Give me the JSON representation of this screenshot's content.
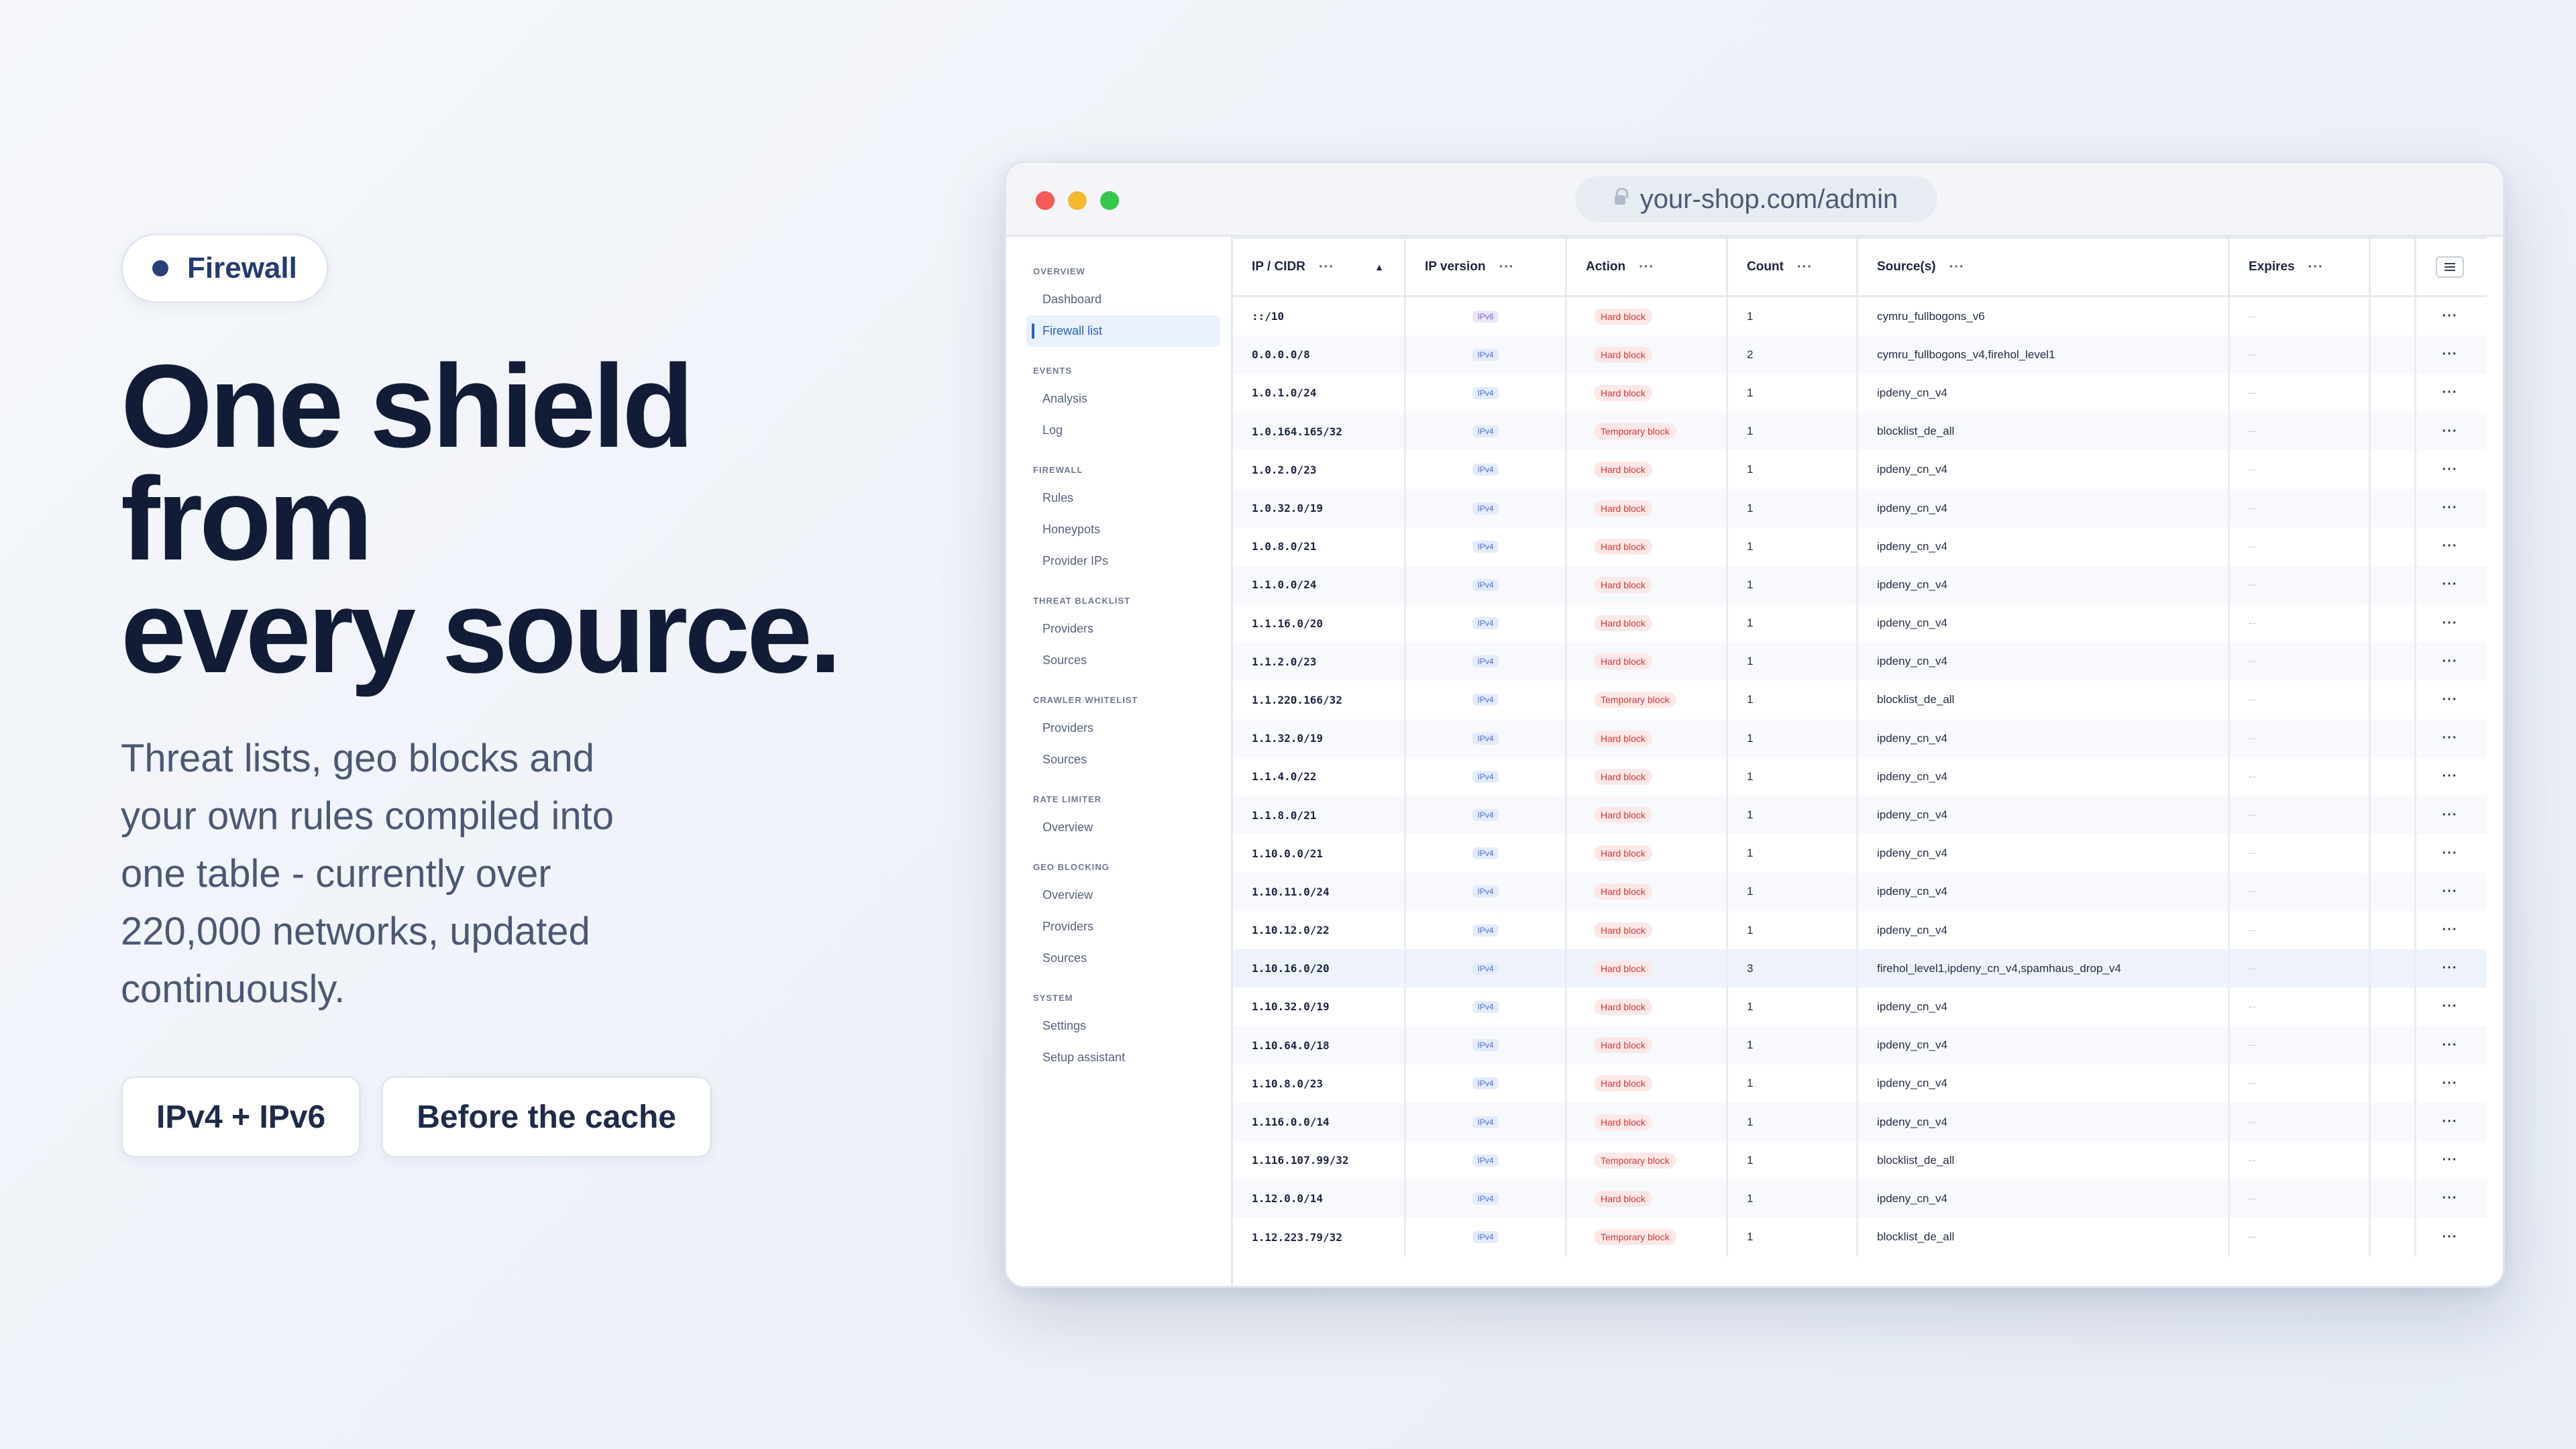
{
  "hero": {
    "pill_label": "Firewall",
    "headline_lines": [
      "One shield",
      "from",
      "every source."
    ],
    "subtext": "Threat lists, geo blocks and your own rules compiled into one table - currently over 220,000 networks, updated continuously.",
    "tags": [
      "IPv4 + IPv6",
      "Before the cache"
    ]
  },
  "browser": {
    "url": "your-shop.com/admin"
  },
  "sidebar": {
    "sections": [
      {
        "heading": "OVERVIEW",
        "items": [
          {
            "label": "Dashboard"
          },
          {
            "label": "Firewall list",
            "active": true
          }
        ]
      },
      {
        "heading": "EVENTS",
        "items": [
          {
            "label": "Analysis"
          },
          {
            "label": "Log"
          }
        ]
      },
      {
        "heading": "FIREWALL",
        "items": [
          {
            "label": "Rules"
          },
          {
            "label": "Honeypots"
          },
          {
            "label": "Provider IPs"
          }
        ]
      },
      {
        "heading": "THREAT BLACKLIST",
        "items": [
          {
            "label": "Providers"
          },
          {
            "label": "Sources"
          }
        ]
      },
      {
        "heading": "CRAWLER WHITELIST",
        "items": [
          {
            "label": "Providers"
          },
          {
            "label": "Sources"
          }
        ]
      },
      {
        "heading": "RATE LIMITER",
        "items": [
          {
            "label": "Overview"
          }
        ]
      },
      {
        "heading": "GEO BLOCKING",
        "items": [
          {
            "label": "Overview"
          },
          {
            "label": "Providers"
          },
          {
            "label": "Sources"
          }
        ]
      },
      {
        "heading": "SYSTEM",
        "items": [
          {
            "label": "Settings"
          },
          {
            "label": "Setup assistant"
          }
        ]
      }
    ]
  },
  "table": {
    "columns": [
      "IP / CIDR",
      "IP version",
      "Action",
      "Count",
      "Source(s)",
      "Expires"
    ],
    "expires_placeholder": "--",
    "row_menu": "···",
    "rows": [
      {
        "cidr": "::/10",
        "version": "IPv6",
        "action": "Hard block",
        "count": "1",
        "sources": "cymru_fullbogons_v6"
      },
      {
        "cidr": "0.0.0.0/8",
        "version": "IPv4",
        "action": "Hard block",
        "count": "2",
        "sources": "cymru_fullbogons_v4,firehol_level1"
      },
      {
        "cidr": "1.0.1.0/24",
        "version": "IPv4",
        "action": "Hard block",
        "count": "1",
        "sources": "ipdeny_cn_v4"
      },
      {
        "cidr": "1.0.164.165/32",
        "version": "IPv4",
        "action": "Temporary block",
        "count": "1",
        "sources": "blocklist_de_all"
      },
      {
        "cidr": "1.0.2.0/23",
        "version": "IPv4",
        "action": "Hard block",
        "count": "1",
        "sources": "ipdeny_cn_v4"
      },
      {
        "cidr": "1.0.32.0/19",
        "version": "IPv4",
        "action": "Hard block",
        "count": "1",
        "sources": "ipdeny_cn_v4"
      },
      {
        "cidr": "1.0.8.0/21",
        "version": "IPv4",
        "action": "Hard block",
        "count": "1",
        "sources": "ipdeny_cn_v4"
      },
      {
        "cidr": "1.1.0.0/24",
        "version": "IPv4",
        "action": "Hard block",
        "count": "1",
        "sources": "ipdeny_cn_v4"
      },
      {
        "cidr": "1.1.16.0/20",
        "version": "IPv4",
        "action": "Hard block",
        "count": "1",
        "sources": "ipdeny_cn_v4"
      },
      {
        "cidr": "1.1.2.0/23",
        "version": "IPv4",
        "action": "Hard block",
        "count": "1",
        "sources": "ipdeny_cn_v4"
      },
      {
        "cidr": "1.1.220.166/32",
        "version": "IPv4",
        "action": "Temporary block",
        "count": "1",
        "sources": "blocklist_de_all"
      },
      {
        "cidr": "1.1.32.0/19",
        "version": "IPv4",
        "action": "Hard block",
        "count": "1",
        "sources": "ipdeny_cn_v4"
      },
      {
        "cidr": "1.1.4.0/22",
        "version": "IPv4",
        "action": "Hard block",
        "count": "1",
        "sources": "ipdeny_cn_v4"
      },
      {
        "cidr": "1.1.8.0/21",
        "version": "IPv4",
        "action": "Hard block",
        "count": "1",
        "sources": "ipdeny_cn_v4"
      },
      {
        "cidr": "1.10.0.0/21",
        "version": "IPv4",
        "action": "Hard block",
        "count": "1",
        "sources": "ipdeny_cn_v4"
      },
      {
        "cidr": "1.10.11.0/24",
        "version": "IPv4",
        "action": "Hard block",
        "count": "1",
        "sources": "ipdeny_cn_v4"
      },
      {
        "cidr": "1.10.12.0/22",
        "version": "IPv4",
        "action": "Hard block",
        "count": "1",
        "sources": "ipdeny_cn_v4"
      },
      {
        "cidr": "1.10.16.0/20",
        "version": "IPv4",
        "action": "Hard block",
        "count": "3",
        "sources": "firehol_level1,ipdeny_cn_v4,spamhaus_drop_v4",
        "highlight": true
      },
      {
        "cidr": "1.10.32.0/19",
        "version": "IPv4",
        "action": "Hard block",
        "count": "1",
        "sources": "ipdeny_cn_v4"
      },
      {
        "cidr": "1.10.64.0/18",
        "version": "IPv4",
        "action": "Hard block",
        "count": "1",
        "sources": "ipdeny_cn_v4"
      },
      {
        "cidr": "1.10.8.0/23",
        "version": "IPv4",
        "action": "Hard block",
        "count": "1",
        "sources": "ipdeny_cn_v4"
      },
      {
        "cidr": "1.116.0.0/14",
        "version": "IPv4",
        "action": "Hard block",
        "count": "1",
        "sources": "ipdeny_cn_v4"
      },
      {
        "cidr": "1.116.107.99/32",
        "version": "IPv4",
        "action": "Temporary block",
        "count": "1",
        "sources": "blocklist_de_all"
      },
      {
        "cidr": "1.12.0.0/14",
        "version": "IPv4",
        "action": "Hard block",
        "count": "1",
        "sources": "ipdeny_cn_v4"
      },
      {
        "cidr": "1.12.223.79/32",
        "version": "IPv4",
        "action": "Temporary block",
        "count": "1",
        "sources": "blocklist_de_all"
      }
    ]
  }
}
